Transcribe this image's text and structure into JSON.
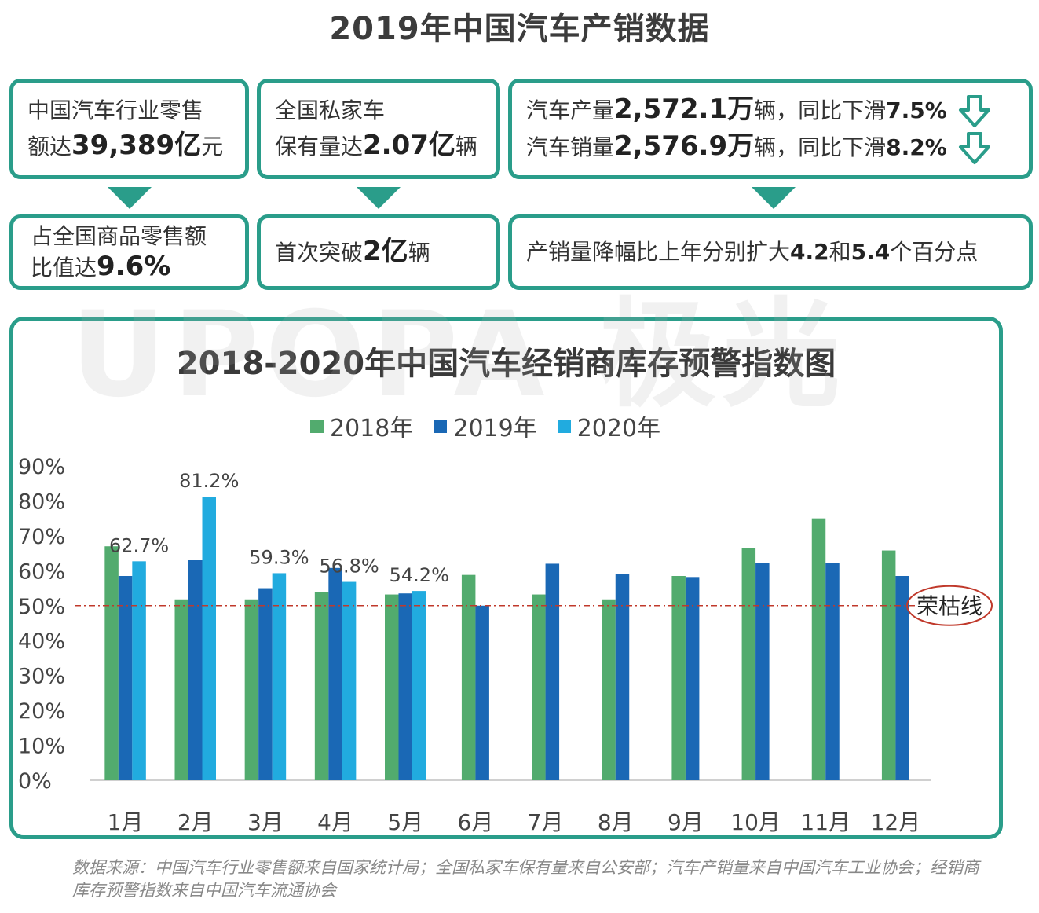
{
  "title": "2019年中国汽车产销数据",
  "boxes": {
    "retail": {
      "t1": "中国汽车行业零售",
      "t2a": "额达",
      "t2b": "39,389亿",
      "t2c": "元"
    },
    "retail_share": {
      "t1": "占全国商品零售额",
      "t2a": "比值达",
      "t2b": "9.6%"
    },
    "private": {
      "t1": "全国私家车",
      "t2a": "保有量达",
      "t2b": "2.07亿",
      "t2c": "辆"
    },
    "private_break": {
      "a": "首次突破",
      "b": "2亿",
      "c": "辆"
    },
    "production": {
      "a": "汽车产量",
      "b": "2,572.1万",
      "c": "辆，同比下滑",
      "d": "7.5%"
    },
    "sales": {
      "a": "汽车销量",
      "b": "2,576.9万",
      "c": "辆，同比下滑",
      "d": "8.2%"
    },
    "decline": {
      "a": "产销量降幅比上年分别扩大",
      "b": "4.2",
      "c": "和",
      "d": "5.4",
      "e": "个百分点"
    }
  },
  "watermark": "UPOPA 极光",
  "colors": {
    "accent": "#2a9d8a",
    "s2018": "#52ab6e",
    "s2019": "#1a68b5",
    "s2020": "#21abdf",
    "line": "#c0392b"
  },
  "chart_data": {
    "type": "bar",
    "title": "2018-2020年中国汽车经销商库存预警指数图",
    "categories": [
      "1月",
      "2月",
      "3月",
      "4月",
      "5月",
      "6月",
      "7月",
      "8月",
      "9月",
      "10月",
      "11月",
      "12月"
    ],
    "series": [
      {
        "name": "2018年",
        "values": [
          67.0,
          51.8,
          51.8,
          54.0,
          53.2,
          58.8,
          53.2,
          51.8,
          58.5,
          66.5,
          75.0,
          65.8
        ]
      },
      {
        "name": "2019年",
        "values": [
          58.5,
          63.0,
          55.0,
          60.8,
          53.5,
          50.0,
          62.0,
          59.0,
          58.2,
          62.2,
          62.2,
          58.5
        ]
      },
      {
        "name": "2020年",
        "values": [
          62.7,
          81.2,
          59.3,
          56.8,
          54.2,
          null,
          null,
          null,
          null,
          null,
          null,
          null
        ]
      }
    ],
    "data_labels": [
      "62.7%",
      "81.2%",
      "59.3%",
      "56.8%",
      "54.2%"
    ],
    "yticks": [
      "0%",
      "10%",
      "20%",
      "30%",
      "40%",
      "50%",
      "60%",
      "70%",
      "80%",
      "90%"
    ],
    "ylim": [
      0,
      90
    ],
    "reference_line": {
      "value": 50,
      "label": "荣枯线"
    },
    "legend": "top"
  },
  "source": "数据来源：中国汽车行业零售额来自国家统计局；全国私家车保有量来自公安部；汽车产销量来自中国汽车工业协会；经销商库存预警指数来自中国汽车流通协会"
}
